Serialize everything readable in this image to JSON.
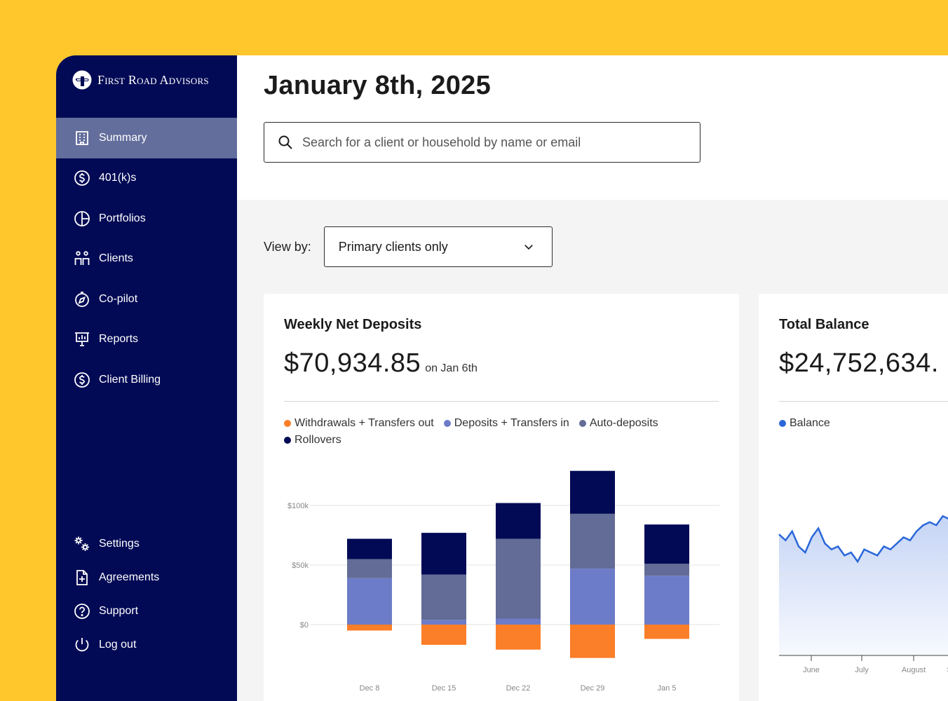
{
  "brand": {
    "name": "First Road Advisors"
  },
  "sidebar": {
    "items": [
      {
        "label": "Summary",
        "icon": "building-icon",
        "active": true
      },
      {
        "label": "401(k)s",
        "icon": "dollar-circle-icon"
      },
      {
        "label": "Portfolios",
        "icon": "pie-chart-icon"
      },
      {
        "label": "Clients",
        "icon": "people-icon"
      },
      {
        "label": "Co-pilot",
        "icon": "compass-icon"
      },
      {
        "label": "Reports",
        "icon": "presentation-icon"
      },
      {
        "label": "Client Billing",
        "icon": "dollar-circle-icon"
      }
    ],
    "bottom_items": [
      {
        "label": "Settings",
        "icon": "gears-icon"
      },
      {
        "label": "Agreements",
        "icon": "document-plus-icon"
      },
      {
        "label": "Support",
        "icon": "help-icon"
      },
      {
        "label": "Log out",
        "icon": "power-icon"
      }
    ]
  },
  "header": {
    "title": "January 8th, 2025"
  },
  "search": {
    "placeholder": "Search for a client or household by name or email",
    "value": ""
  },
  "view_by": {
    "label": "View by:",
    "selected": "Primary clients only"
  },
  "colors": {
    "sidebar_bg": "#020A55",
    "active_item": "#636E9C",
    "withdrawals": "#FB7E28",
    "deposits": "#6C7CC8",
    "auto_deposits": "#636C96",
    "rollovers": "#020A55",
    "balance_line": "#2B67D9"
  },
  "weekly": {
    "title": "Weekly Net Deposits",
    "value": "$70,934.85",
    "sub": "on Jan 6th",
    "chart_data": {
      "type": "bar",
      "stacked": true,
      "categories": [
        "Dec 8",
        "Dec 15",
        "Dec 22",
        "Dec 29",
        "Jan 5"
      ],
      "ytick_labels": [
        "$0",
        "$50k",
        "$100k"
      ],
      "yticks": [
        0,
        50000,
        100000
      ],
      "series": [
        {
          "name": "Withdrawals + Transfers out",
          "values": [
            -5000,
            -17000,
            -21000,
            -28000,
            -12000
          ]
        },
        {
          "name": "Deposits + Transfers in",
          "values": [
            39000,
            4000,
            5000,
            47000,
            41000
          ]
        },
        {
          "name": "Auto-deposits",
          "values": [
            16000,
            38000,
            67000,
            46000,
            10000
          ]
        },
        {
          "name": "Rollovers",
          "values": [
            17000,
            35000,
            30000,
            36000,
            33000
          ]
        }
      ],
      "ylim": [
        -30000,
        130000
      ]
    }
  },
  "balance": {
    "title": "Total Balance",
    "value": "$24,752,634.",
    "chart_data": {
      "type": "area",
      "series": [
        {
          "name": "Balance",
          "values": [
            100,
            98,
            101,
            96,
            94,
            99,
            102,
            97,
            95,
            96,
            93,
            94,
            91,
            95,
            94,
            93,
            96,
            95,
            97,
            99,
            98,
            101,
            103,
            104,
            103,
            106,
            105,
            102,
            105,
            108
          ]
        }
      ],
      "x_tick_labels": [
        "June",
        "July",
        "August",
        "S"
      ]
    }
  }
}
